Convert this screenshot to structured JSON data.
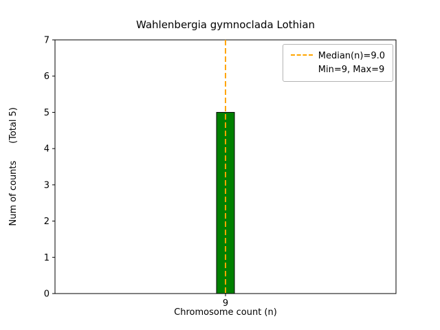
{
  "chart_data": {
    "type": "bar",
    "title": "Wahlenbergia gymnoclada Lothian",
    "xlabel": "Chromosome count (n)",
    "ylabel": "Num of counts      (Total 5)",
    "categories": [
      "9"
    ],
    "values": [
      5
    ],
    "total_counts": 5,
    "bar_color": "#008000",
    "bar_edge_color": "#000000",
    "ylim": [
      0,
      7
    ],
    "yticks": [
      0,
      1,
      2,
      3,
      4,
      5,
      6,
      7
    ],
    "grid": false,
    "median_line": {
      "at_category": "9",
      "value": 9.0,
      "color": "#FFA500",
      "style": "dashed"
    },
    "legend": {
      "position": "upper right",
      "entries": [
        {
          "label": "Median(n)=9.0",
          "marker": "dashed-line",
          "color": "#FFA500"
        },
        {
          "label": "Min=9, Max=9",
          "marker": "none"
        }
      ]
    }
  }
}
